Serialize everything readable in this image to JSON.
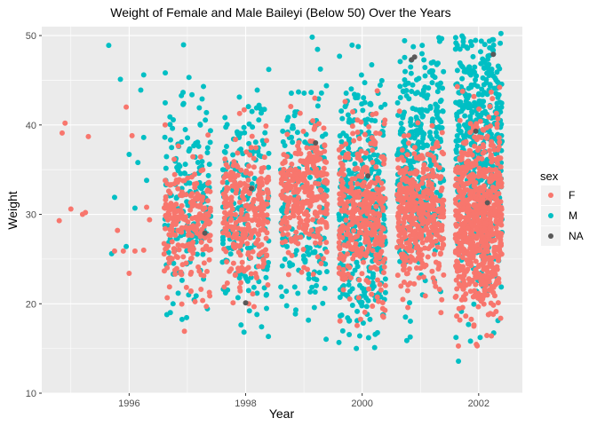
{
  "chart_data": {
    "type": "scatter",
    "title": "Weight of Female and Male Baileyi (Below 50) Over the Years",
    "xlabel": "Year",
    "ylabel": "Weight",
    "xlim": [
      1994.5,
      2002.75
    ],
    "ylim": [
      10,
      51
    ],
    "x_ticks": [
      "1996",
      "1998",
      "2000",
      "2002"
    ],
    "y_ticks": [
      "10",
      "20",
      "30",
      "40",
      "50"
    ],
    "grid": true,
    "jitter": "points spread horizontally within each year",
    "legend": {
      "title": "sex",
      "placement": "right",
      "entries": [
        "F",
        "M",
        "NA"
      ]
    },
    "colors": {
      "F": "#F8766D",
      "M": "#00BFC4",
      "NA": "#595959"
    },
    "series": [
      {
        "name": "F",
        "points": [
          [
            1994.8,
            29.3
          ],
          [
            1994.85,
            39.1
          ],
          [
            1994.9,
            40.2
          ],
          [
            1995.0,
            30.6
          ],
          [
            1995.2,
            30.0
          ],
          [
            1995.25,
            30.2
          ],
          [
            1995.3,
            38.7
          ],
          [
            1995.75,
            25.9
          ],
          [
            1995.8,
            28.2
          ],
          [
            1995.9,
            25.9
          ],
          [
            1995.95,
            42.0
          ],
          [
            1996.0,
            23.4
          ],
          [
            1996.05,
            38.8
          ],
          [
            1996.1,
            25.9
          ],
          [
            1996.25,
            26.0
          ],
          [
            1996.3,
            30.8
          ],
          [
            1996.35,
            29.4
          ]
        ],
        "clusters": [
          {
            "x": 1997.0,
            "count": 240,
            "y_mean": 29.0,
            "y_sd": 3.6,
            "y_range": [
              16.7,
              47.8
            ]
          },
          {
            "x": 1998.0,
            "count": 280,
            "y_mean": 30.0,
            "y_sd": 4.4,
            "y_range": [
              18.7,
              45.6
            ]
          },
          {
            "x": 1999.0,
            "count": 300,
            "y_mean": 32.2,
            "y_sd": 3.8,
            "y_range": [
              15.6,
              48.2
            ]
          },
          {
            "x": 2000.0,
            "count": 380,
            "y_mean": 30.2,
            "y_sd": 4.8,
            "y_range": [
              15.2,
              49.0
            ]
          },
          {
            "x": 2001.0,
            "count": 420,
            "y_mean": 30.0,
            "y_sd": 4.2,
            "y_range": [
              16.3,
              48.4
            ]
          },
          {
            "x": 2002.0,
            "count": 720,
            "y_mean": 29.2,
            "y_sd": 5.0,
            "y_range": [
              11.8,
              48.6
            ]
          }
        ]
      },
      {
        "name": "M",
        "points": [
          [
            1995.65,
            48.9
          ],
          [
            1995.7,
            25.6
          ],
          [
            1995.75,
            31.9
          ],
          [
            1995.85,
            45.1
          ],
          [
            1995.95,
            26.4
          ],
          [
            1996.0,
            36.7
          ],
          [
            1996.1,
            30.7
          ],
          [
            1996.15,
            35.8
          ],
          [
            1996.2,
            43.9
          ],
          [
            1996.25,
            45.6
          ],
          [
            1996.25,
            38.6
          ],
          [
            1996.3,
            33.8
          ]
        ],
        "clusters": [
          {
            "x": 1997.0,
            "count": 180,
            "y_mean": 32.0,
            "y_sd": 6.2,
            "y_range": [
              17.4,
              50.2
            ]
          },
          {
            "x": 1998.0,
            "count": 190,
            "y_mean": 31.5,
            "y_sd": 7.0,
            "y_range": [
              15.9,
              48.2
            ]
          },
          {
            "x": 1999.0,
            "count": 180,
            "y_mean": 31.5,
            "y_sd": 7.2,
            "y_range": [
              15.6,
              50.1
            ]
          },
          {
            "x": 2000.0,
            "count": 430,
            "y_mean": 30.5,
            "y_sd": 7.5,
            "y_range": [
              14.1,
              49.4
            ]
          },
          {
            "x": 2001.0,
            "count": 350,
            "y_mean": 36.0,
            "y_sd": 6.5,
            "y_range": [
              13.6,
              50.2
            ]
          },
          {
            "x": 2002.0,
            "count": 480,
            "y_mean": 38.5,
            "y_sd": 7.5,
            "y_range": [
              12.8,
              50.4
            ]
          }
        ]
      },
      {
        "name": "NA",
        "points": [
          [
            1997.3,
            27.9
          ],
          [
            1998.1,
            32.9
          ],
          [
            1998.0,
            20.1
          ],
          [
            1999.2,
            38.0
          ],
          [
            2000.1,
            34.3
          ],
          [
            2000.85,
            47.3
          ],
          [
            2000.9,
            47.6
          ],
          [
            2001.95,
            39.3
          ],
          [
            2002.15,
            31.3
          ],
          [
            2002.25,
            47.9
          ]
        ]
      }
    ]
  }
}
